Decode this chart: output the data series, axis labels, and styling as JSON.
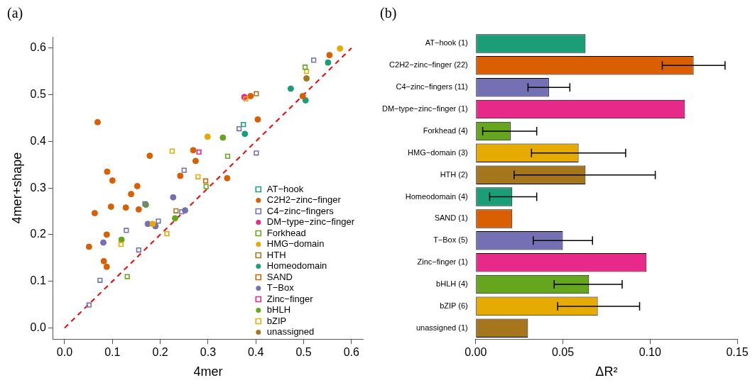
{
  "chart_data": [
    {
      "type": "scatter",
      "title": "(a)",
      "xlabel": "4mer",
      "ylabel": "4mer+shape",
      "xlim": [
        -0.024,
        0.624
      ],
      "ylim": [
        -0.024,
        0.624
      ],
      "xticks": [
        {
          "value": 0,
          "label": "0.0"
        },
        {
          "value": 0.1,
          "label": "0.1"
        },
        {
          "value": 0.2,
          "label": "0.2"
        },
        {
          "value": 0.3,
          "label": "0.3"
        },
        {
          "value": 0.4,
          "label": "0.4"
        },
        {
          "value": 0.5,
          "label": "0.5"
        },
        {
          "value": 0.6,
          "label": "0.6"
        }
      ],
      "yticks": [
        {
          "value": 0,
          "label": "0.0"
        },
        {
          "value": 0.1,
          "label": "0.1"
        },
        {
          "value": 0.2,
          "label": "0.2"
        },
        {
          "value": 0.3,
          "label": "0.3"
        },
        {
          "value": 0.4,
          "label": "0.4"
        },
        {
          "value": 0.5,
          "label": "0.5"
        },
        {
          "value": 0.6,
          "label": "0.6"
        }
      ],
      "legend": "bottom right",
      "series": [
        {
          "name": "AT−hook",
          "color": "#1b9e77",
          "marker": "square",
          "x": [
            0.374
          ],
          "values": [
            0.436
          ]
        },
        {
          "name": "C2H2−zinc−finger",
          "color": "#d95f02",
          "marker": "circle",
          "x": [
            0.069,
            0.269,
            0.178,
            0.274,
            0.089,
            0.242,
            0.1,
            0.152,
            0.139,
            0.097,
            0.128,
            0.155,
            0.063,
            0.088,
            0.051,
            0.082,
            0.088,
            0.554,
            0.498,
            0.389,
            0.404,
            0.34
          ],
          "values": [
            0.441,
            0.381,
            0.369,
            0.358,
            0.335,
            0.326,
            0.316,
            0.304,
            0.287,
            0.26,
            0.258,
            0.254,
            0.246,
            0.2,
            0.174,
            0.143,
            0.131,
            0.585,
            0.497,
            0.497,
            0.447,
            0.321
          ]
        },
        {
          "name": "C4−zinc−fingers",
          "color": "#7570b3",
          "marker": "square",
          "x": [
            0.25,
            0.168,
            0.245,
            0.196,
            0.129,
            0.155,
            0.074,
            0.051,
            0.521,
            0.365,
            0.401
          ],
          "values": [
            0.338,
            0.266,
            0.249,
            0.229,
            0.209,
            0.167,
            0.102,
            0.049,
            0.574,
            0.427,
            0.375
          ]
        },
        {
          "name": "DM−type−zinc−finger",
          "color": "#e7298a",
          "marker": "circle",
          "x": [
            0.376
          ],
          "values": [
            0.495
          ]
        },
        {
          "name": "Forkhead",
          "color": "#66a61e",
          "marker": "square",
          "x": [
            0.296,
            0.131,
            0.503,
            0.341
          ],
          "values": [
            0.303,
            0.11,
            0.559,
            0.368
          ]
        },
        {
          "name": "HMG−domain",
          "color": "#e6ab02",
          "marker": "circle",
          "x": [
            0.299,
            0.184,
            0.576
          ],
          "values": [
            0.41,
            0.223,
            0.599
          ]
        },
        {
          "name": "HTH",
          "color": "#a6761d",
          "marker": "square",
          "x": [
            0.233,
            0.401
          ],
          "values": [
            0.251,
            0.502
          ]
        },
        {
          "name": "Homeodomain",
          "color": "#1b9e77",
          "marker": "circle",
          "x": [
            0.551,
            0.473,
            0.504,
            0.377
          ],
          "values": [
            0.569,
            0.513,
            0.488,
            0.416
          ]
        },
        {
          "name": "SAND",
          "color": "#d95f02",
          "marker": "square",
          "x": [
            0.295
          ],
          "values": [
            0.315
          ]
        },
        {
          "name": "T−Box",
          "color": "#7570b3",
          "marker": "circle",
          "x": [
            0.227,
            0.252,
            0.174,
            0.19,
            0.081
          ],
          "values": [
            0.28,
            0.252,
            0.223,
            0.218,
            0.183
          ]
        },
        {
          "name": "Zinc−finger",
          "color": "#e7298a",
          "marker": "square",
          "x": [
            0.281
          ],
          "values": [
            0.377
          ]
        },
        {
          "name": "bHLH",
          "color": "#66a61e",
          "marker": "circle",
          "x": [
            0.17,
            0.231,
            0.119,
            0.331
          ],
          "values": [
            0.264,
            0.235,
            0.189,
            0.408
          ]
        },
        {
          "name": "bZIP",
          "color": "#e6ab02",
          "marker": "square",
          "x": [
            0.225,
            0.279,
            0.214,
            0.118,
            0.379,
            0.506
          ],
          "values": [
            0.379,
            0.324,
            0.202,
            0.179,
            0.491,
            0.55
          ]
        },
        {
          "name": "unassigned",
          "color": "#a6761d",
          "marker": "circle",
          "x": [
            0.506
          ],
          "values": [
            0.535
          ]
        },
        {
          "type": "line",
          "color": "#ff0000",
          "marker": "none",
          "line_style": "dashed",
          "x": [
            0,
            0.6
          ],
          "values": [
            0,
            0.6
          ]
        }
      ]
    },
    {
      "type": "bar",
      "title": "(b)",
      "xlabel": "ΔR²",
      "orientation": "horizontal",
      "xlim": [
        0,
        0.15
      ],
      "xticks": [
        {
          "value": 0,
          "label": "0.00"
        },
        {
          "value": 0.05,
          "label": "0.05"
        },
        {
          "value": 0.1,
          "label": "0.10"
        },
        {
          "value": 0.15,
          "label": "0.15"
        }
      ],
      "categories": [
        "AT−hook (1)",
        "C2H2−zinc−finger (22)",
        "C4−zinc−fingers (11)",
        "DM−type−zinc−finger (1)",
        "Forkhead (4)",
        "HMG−domain (3)",
        "HTH (2)",
        "Homeodomain (4)",
        "SAND (1)",
        "T−Box (5)",
        "Zinc−finger (1)",
        "bHLH (4)",
        "bZIP (6)",
        "unassigned (1)"
      ],
      "values": [
        0.063,
        0.125,
        0.042,
        0.12,
        0.02,
        0.059,
        0.063,
        0.021,
        0.021,
        0.05,
        0.098,
        0.065,
        0.07,
        0.03
      ],
      "colors": [
        "#1b9e77",
        "#d95f02",
        "#7570b3",
        "#e7298a",
        "#66a61e",
        "#e6ab02",
        "#a6761d",
        "#1b9e77",
        "#d95f02",
        "#7570b3",
        "#e7298a",
        "#66a61e",
        "#e6ab02",
        "#a6761d"
      ],
      "errors": [
        null,
        [
          0.107,
          0.143
        ],
        [
          0.03,
          0.054
        ],
        null,
        [
          0.004,
          0.035
        ],
        [
          0.032,
          0.086
        ],
        [
          0.022,
          0.103
        ],
        [
          0.008,
          0.035
        ],
        null,
        [
          0.033,
          0.067
        ],
        null,
        [
          0.045,
          0.084
        ],
        [
          0.047,
          0.094
        ],
        null
      ]
    }
  ]
}
